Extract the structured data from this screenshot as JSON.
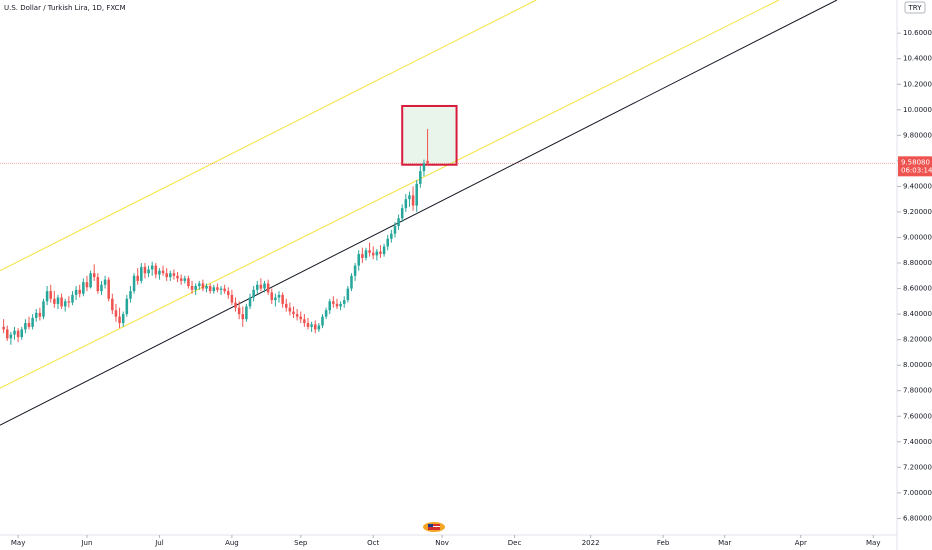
{
  "chart_data": {
    "type": "candlestick",
    "title": "U.S. Dollar / Turkish Lira, 1D, FXCM",
    "currency": "TRY",
    "up_color": "#26a69a",
    "down_color": "#ef5350",
    "ylim": [
      6.67,
      10.86
    ],
    "xlim": [
      -1,
      246
    ],
    "yticks": [
      {
        "value": 6.8,
        "label": "6.80000"
      },
      {
        "value": 7.0,
        "label": "7.00000"
      },
      {
        "value": 7.2,
        "label": "7.20000"
      },
      {
        "value": 7.4,
        "label": "7.40000"
      },
      {
        "value": 7.6,
        "label": "7.60000"
      },
      {
        "value": 7.8,
        "label": "7.80000"
      },
      {
        "value": 8.0,
        "label": "8.00000"
      },
      {
        "value": 8.2,
        "label": "8.20000"
      },
      {
        "value": 8.4,
        "label": "8.40000"
      },
      {
        "value": 8.6,
        "label": "8.60000"
      },
      {
        "value": 8.8,
        "label": "8.80000"
      },
      {
        "value": 9.0,
        "label": "9.00000"
      },
      {
        "value": 9.2,
        "label": "9.20000"
      },
      {
        "value": 9.4,
        "label": "9.40000"
      },
      {
        "value": 9.6,
        "label": "9.60000"
      },
      {
        "value": 9.8,
        "label": "9.80000"
      },
      {
        "value": 10.0,
        "label": "10.00000"
      },
      {
        "value": 10.2,
        "label": "10.20000"
      },
      {
        "value": 10.4,
        "label": "10.40000"
      },
      {
        "value": 10.6,
        "label": "10.60000"
      }
    ],
    "xticks": [
      {
        "value": 4,
        "label": "May"
      },
      {
        "value": 23,
        "label": "Jun"
      },
      {
        "value": 43,
        "label": "Jul"
      },
      {
        "value": 63,
        "label": "Aug"
      },
      {
        "value": 82,
        "label": "Sep"
      },
      {
        "value": 102,
        "label": "Oct"
      },
      {
        "value": 121,
        "label": "Nov"
      },
      {
        "value": 141,
        "label": "Dec"
      },
      {
        "value": 162,
        "label": "2022"
      },
      {
        "value": 182,
        "label": "Feb"
      },
      {
        "value": 199,
        "label": "Mar"
      },
      {
        "value": 220,
        "label": "Apr"
      },
      {
        "value": 240,
        "label": "May"
      }
    ],
    "candles": [
      [
        8.3,
        8.36,
        8.25,
        8.28
      ],
      [
        8.28,
        8.31,
        8.19,
        8.21
      ],
      [
        8.21,
        8.26,
        8.16,
        8.24
      ],
      [
        8.24,
        8.3,
        8.2,
        8.27
      ],
      [
        8.27,
        8.29,
        8.18,
        8.22
      ],
      [
        8.22,
        8.3,
        8.2,
        8.28
      ],
      [
        8.28,
        8.36,
        8.25,
        8.33
      ],
      [
        8.33,
        8.38,
        8.28,
        8.3
      ],
      [
        8.3,
        8.4,
        8.28,
        8.37
      ],
      [
        8.37,
        8.44,
        8.34,
        8.41
      ],
      [
        8.41,
        8.45,
        8.35,
        8.38
      ],
      [
        8.38,
        8.52,
        8.36,
        8.5
      ],
      [
        8.5,
        8.62,
        8.47,
        8.58
      ],
      [
        8.58,
        8.63,
        8.49,
        8.52
      ],
      [
        8.52,
        8.58,
        8.45,
        8.48
      ],
      [
        8.48,
        8.55,
        8.44,
        8.53
      ],
      [
        8.53,
        8.56,
        8.44,
        8.46
      ],
      [
        8.46,
        8.52,
        8.42,
        8.5
      ],
      [
        8.5,
        8.54,
        8.45,
        8.49
      ],
      [
        8.49,
        8.58,
        8.47,
        8.55
      ],
      [
        8.55,
        8.62,
        8.51,
        8.59
      ],
      [
        8.59,
        8.63,
        8.53,
        8.56
      ],
      [
        8.56,
        8.68,
        8.54,
        8.65
      ],
      [
        8.65,
        8.7,
        8.58,
        8.61
      ],
      [
        8.61,
        8.74,
        8.6,
        8.72
      ],
      [
        8.72,
        8.79,
        8.66,
        8.69
      ],
      [
        8.69,
        8.72,
        8.56,
        8.58
      ],
      [
        8.58,
        8.66,
        8.55,
        8.63
      ],
      [
        8.63,
        8.7,
        8.6,
        8.67
      ],
      [
        8.67,
        8.69,
        8.5,
        8.52
      ],
      [
        8.52,
        8.56,
        8.4,
        8.43
      ],
      [
        8.43,
        8.48,
        8.34,
        8.38
      ],
      [
        8.38,
        8.45,
        8.29,
        8.33
      ],
      [
        8.33,
        8.42,
        8.3,
        8.4
      ],
      [
        8.4,
        8.55,
        8.38,
        8.52
      ],
      [
        8.52,
        8.62,
        8.49,
        8.58
      ],
      [
        8.58,
        8.72,
        8.56,
        8.7
      ],
      [
        8.7,
        8.76,
        8.63,
        8.66
      ],
      [
        8.66,
        8.8,
        8.64,
        8.77
      ],
      [
        8.77,
        8.8,
        8.68,
        8.72
      ],
      [
        8.72,
        8.78,
        8.69,
        8.75
      ],
      [
        8.75,
        8.81,
        8.7,
        8.78
      ],
      [
        8.78,
        8.8,
        8.68,
        8.71
      ],
      [
        8.71,
        8.76,
        8.67,
        8.74
      ],
      [
        8.74,
        8.78,
        8.7,
        8.72
      ],
      [
        8.72,
        8.76,
        8.66,
        8.69
      ],
      [
        8.69,
        8.74,
        8.66,
        8.72
      ],
      [
        8.72,
        8.75,
        8.67,
        8.7
      ],
      [
        8.7,
        8.73,
        8.65,
        8.68
      ],
      [
        8.68,
        8.71,
        8.63,
        8.66
      ],
      [
        8.66,
        8.7,
        8.64,
        8.68
      ],
      [
        8.68,
        8.7,
        8.6,
        8.62
      ],
      [
        8.62,
        8.66,
        8.56,
        8.59
      ],
      [
        8.59,
        8.64,
        8.55,
        8.62
      ],
      [
        8.62,
        8.66,
        8.59,
        8.64
      ],
      [
        8.64,
        8.67,
        8.58,
        8.6
      ],
      [
        8.6,
        8.64,
        8.57,
        8.62
      ],
      [
        8.62,
        8.64,
        8.56,
        8.58
      ],
      [
        8.58,
        8.63,
        8.56,
        8.61
      ],
      [
        8.61,
        8.64,
        8.57,
        8.59
      ],
      [
        8.59,
        8.62,
        8.55,
        8.6
      ],
      [
        8.6,
        8.63,
        8.56,
        8.58
      ],
      [
        8.58,
        8.61,
        8.52,
        8.55
      ],
      [
        8.55,
        8.59,
        8.47,
        8.49
      ],
      [
        8.49,
        8.53,
        8.42,
        8.45
      ],
      [
        8.45,
        8.5,
        8.36,
        8.4
      ],
      [
        8.4,
        8.46,
        8.3,
        8.36
      ],
      [
        8.36,
        8.48,
        8.34,
        8.46
      ],
      [
        8.46,
        8.56,
        8.44,
        8.53
      ],
      [
        8.53,
        8.62,
        8.5,
        8.59
      ],
      [
        8.59,
        8.66,
        8.56,
        8.63
      ],
      [
        8.63,
        8.68,
        8.58,
        8.6
      ],
      [
        8.6,
        8.66,
        8.57,
        8.64
      ],
      [
        8.64,
        8.67,
        8.55,
        8.57
      ],
      [
        8.57,
        8.6,
        8.48,
        8.51
      ],
      [
        8.51,
        8.56,
        8.46,
        8.53
      ],
      [
        8.53,
        8.58,
        8.49,
        8.55
      ],
      [
        8.55,
        8.57,
        8.45,
        8.48
      ],
      [
        8.48,
        8.52,
        8.42,
        8.45
      ],
      [
        8.45,
        8.49,
        8.39,
        8.42
      ],
      [
        8.42,
        8.46,
        8.37,
        8.4
      ],
      [
        8.4,
        8.44,
        8.35,
        8.38
      ],
      [
        8.38,
        8.42,
        8.33,
        8.36
      ],
      [
        8.36,
        8.4,
        8.3,
        8.33
      ],
      [
        8.33,
        8.37,
        8.28,
        8.3
      ],
      [
        8.3,
        8.34,
        8.26,
        8.32
      ],
      [
        8.32,
        8.35,
        8.25,
        8.28
      ],
      [
        8.28,
        8.33,
        8.26,
        8.31
      ],
      [
        8.31,
        8.4,
        8.29,
        8.38
      ],
      [
        8.38,
        8.45,
        8.36,
        8.43
      ],
      [
        8.43,
        8.52,
        8.4,
        8.5
      ],
      [
        8.5,
        8.54,
        8.45,
        8.48
      ],
      [
        8.48,
        8.52,
        8.44,
        8.46
      ],
      [
        8.46,
        8.5,
        8.43,
        8.48
      ],
      [
        8.48,
        8.54,
        8.45,
        8.51
      ],
      [
        8.51,
        8.62,
        8.49,
        8.6
      ],
      [
        8.6,
        8.72,
        8.58,
        8.7
      ],
      [
        8.7,
        8.8,
        8.66,
        8.78
      ],
      [
        8.78,
        8.9,
        8.74,
        8.87
      ],
      [
        8.87,
        8.92,
        8.8,
        8.84
      ],
      [
        8.84,
        8.92,
        8.82,
        8.9
      ],
      [
        8.9,
        8.96,
        8.85,
        8.88
      ],
      [
        8.88,
        8.93,
        8.83,
        8.86
      ],
      [
        8.86,
        8.91,
        8.82,
        8.89
      ],
      [
        8.89,
        8.94,
        8.84,
        8.87
      ],
      [
        8.87,
        8.95,
        8.85,
        8.93
      ],
      [
        8.93,
        9.02,
        8.9,
        8.99
      ],
      [
        8.99,
        9.06,
        8.96,
        9.03
      ],
      [
        9.03,
        9.12,
        9.0,
        9.09
      ],
      [
        9.09,
        9.18,
        9.06,
        9.15
      ],
      [
        9.15,
        9.26,
        9.12,
        9.23
      ],
      [
        9.23,
        9.34,
        9.2,
        9.3
      ],
      [
        9.3,
        9.36,
        9.24,
        9.33
      ],
      [
        9.33,
        9.4,
        9.21,
        9.25
      ],
      [
        9.25,
        9.45,
        9.2,
        9.42
      ],
      [
        9.42,
        9.56,
        9.39,
        9.52
      ],
      [
        9.52,
        9.61,
        9.48,
        9.58
      ],
      [
        9.6,
        9.85,
        9.56,
        9.58
      ]
    ],
    "trendlines": [
      {
        "color": "#f5e33a",
        "x": [
          -1,
          147
        ],
        "y": [
          8.74,
          10.86
        ]
      },
      {
        "color": "#f5e33a",
        "x": [
          -1,
          214
        ],
        "y": [
          7.82,
          10.86
        ]
      },
      {
        "color": "#131722",
        "x": [
          -1,
          230
        ],
        "y": [
          7.53,
          10.86
        ]
      }
    ],
    "box": {
      "x": [
        110,
        125
      ],
      "y": [
        9.57,
        10.03
      ],
      "color": "#d81b3c"
    },
    "last_price": {
      "value": 9.5808,
      "label": "9.58080"
    },
    "countdown": "06:03:14"
  }
}
